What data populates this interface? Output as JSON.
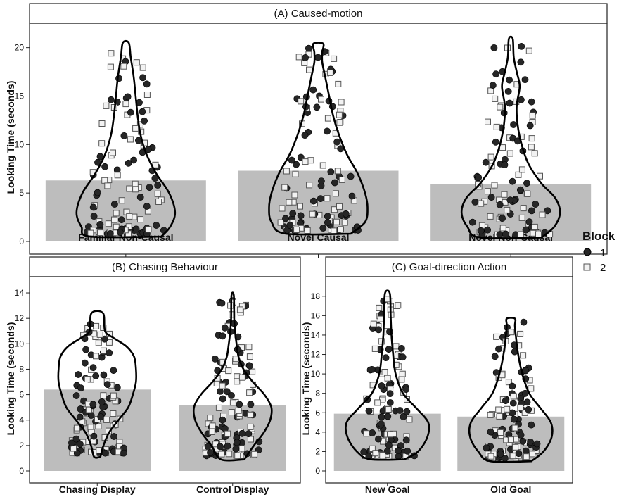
{
  "colors": {
    "bar": "#bdbdbd",
    "block1_fill": "#262626",
    "block2_fill": "#f2f2f2",
    "block2_stroke": "#555555",
    "violin": "#000000",
    "strip_bg": "#ffffff"
  },
  "legend": {
    "title": "Block",
    "items": [
      {
        "label": "1",
        "shape": "filled-circle"
      },
      {
        "label": "2",
        "shape": "open-square"
      }
    ]
  },
  "chart_data": [
    {
      "type": "bar",
      "title": "(A) Caused-motion",
      "ylabel": "Looking Time (seconds)",
      "ylim": [
        0,
        21.5
      ],
      "yticks": [
        0,
        5,
        10,
        15,
        20
      ],
      "categories": [
        "Familiar Non-Causal",
        "Novel Causal",
        "Novel Non-Causal"
      ],
      "values": [
        6.3,
        7.3,
        5.9
      ],
      "violins": [
        {
          "min": 0.5,
          "max": 20.5,
          "profile": [
            [
              0.5,
              0.72
            ],
            [
              1.5,
              0.9
            ],
            [
              3,
              1.0
            ],
            [
              5,
              0.88
            ],
            [
              7,
              0.62
            ],
            [
              9,
              0.42
            ],
            [
              11,
              0.3
            ],
            [
              13,
              0.24
            ],
            [
              15,
              0.2
            ],
            [
              17,
              0.16
            ],
            [
              19,
              0.1
            ],
            [
              20.5,
              0.06
            ]
          ]
        },
        {
          "min": 0.8,
          "max": 20.4,
          "profile": [
            [
              0.8,
              0.66
            ],
            [
              2,
              0.95
            ],
            [
              3.5,
              1.0
            ],
            [
              5,
              0.95
            ],
            [
              7,
              0.8
            ],
            [
              9,
              0.58
            ],
            [
              11,
              0.42
            ],
            [
              13,
              0.3
            ],
            [
              15,
              0.22
            ],
            [
              17,
              0.14
            ],
            [
              18.5,
              0.08
            ],
            [
              19.5,
              0.08
            ],
            [
              20.4,
              0.1
            ]
          ]
        },
        {
          "min": 0.4,
          "max": 20.9,
          "profile": [
            [
              0.4,
              0.62
            ],
            [
              1.5,
              0.88
            ],
            [
              3,
              1.0
            ],
            [
              4.5,
              0.9
            ],
            [
              6,
              0.62
            ],
            [
              8,
              0.36
            ],
            [
              10,
              0.22
            ],
            [
              12,
              0.14
            ],
            [
              14,
              0.12
            ],
            [
              16,
              0.18
            ],
            [
              17.5,
              0.12
            ],
            [
              19,
              0.06
            ],
            [
              20.9,
              0.04
            ]
          ]
        }
      ],
      "n_points": 58
    },
    {
      "type": "bar",
      "title": "(B) Chasing Behaviour",
      "ylabel": "Looking Time (seconds)",
      "ylim": [
        0,
        14.5
      ],
      "yticks": [
        0,
        2,
        4,
        6,
        8,
        10,
        12,
        14
      ],
      "categories": [
        "Chasing Display",
        "Control Display"
      ],
      "values": [
        6.4,
        5.2
      ],
      "violins": [
        {
          "min": 1.1,
          "max": 12.4,
          "profile": [
            [
              1.1,
              0.08
            ],
            [
              2,
              0.16
            ],
            [
              3,
              0.3
            ],
            [
              4,
              0.55
            ],
            [
              5,
              0.8
            ],
            [
              6,
              0.92
            ],
            [
              7,
              1.0
            ],
            [
              8,
              1.0
            ],
            [
              9,
              0.95
            ],
            [
              9.8,
              0.75
            ],
            [
              10.5,
              0.4
            ],
            [
              11,
              0.2
            ],
            [
              12.4,
              0.15
            ]
          ]
        },
        {
          "min": 0.9,
          "max": 13.8,
          "profile": [
            [
              0.9,
              0.3
            ],
            [
              2,
              0.55
            ],
            [
              3,
              0.8
            ],
            [
              4,
              0.97
            ],
            [
              5,
              1.0
            ],
            [
              6,
              0.82
            ],
            [
              7,
              0.52
            ],
            [
              8,
              0.28
            ],
            [
              9,
              0.15
            ],
            [
              10,
              0.1
            ],
            [
              11,
              0.06
            ],
            [
              12,
              0.04
            ],
            [
              13.8,
              0.03
            ]
          ]
        }
      ],
      "n_points": 62
    },
    {
      "type": "bar",
      "title": "(C) Goal-direction Action",
      "ylabel": "Looking Time (seconds)",
      "ylim": [
        0,
        19
      ],
      "yticks": [
        0,
        2,
        4,
        6,
        8,
        10,
        12,
        14,
        16,
        18
      ],
      "categories": [
        "New Goal",
        "Old Goal"
      ],
      "values": [
        5.9,
        5.6
      ],
      "violins": [
        {
          "min": 1.2,
          "max": 18.3,
          "profile": [
            [
              1.2,
              0.42
            ],
            [
              2,
              0.75
            ],
            [
              3.5,
              0.98
            ],
            [
              5,
              1.0
            ],
            [
              6.5,
              0.7
            ],
            [
              8,
              0.38
            ],
            [
              10,
              0.2
            ],
            [
              12,
              0.14
            ],
            [
              14,
              0.1
            ],
            [
              16,
              0.08
            ],
            [
              18.3,
              0.06
            ]
          ]
        },
        {
          "min": 1.0,
          "max": 15.7,
          "profile": [
            [
              1.0,
              0.5
            ],
            [
              2,
              0.8
            ],
            [
              3.5,
              1.0
            ],
            [
              5,
              0.98
            ],
            [
              6.5,
              0.72
            ],
            [
              8,
              0.45
            ],
            [
              10,
              0.28
            ],
            [
              12,
              0.18
            ],
            [
              14,
              0.12
            ],
            [
              15,
              0.1
            ],
            [
              15.7,
              0.1
            ]
          ]
        }
      ],
      "n_points": 60
    }
  ]
}
